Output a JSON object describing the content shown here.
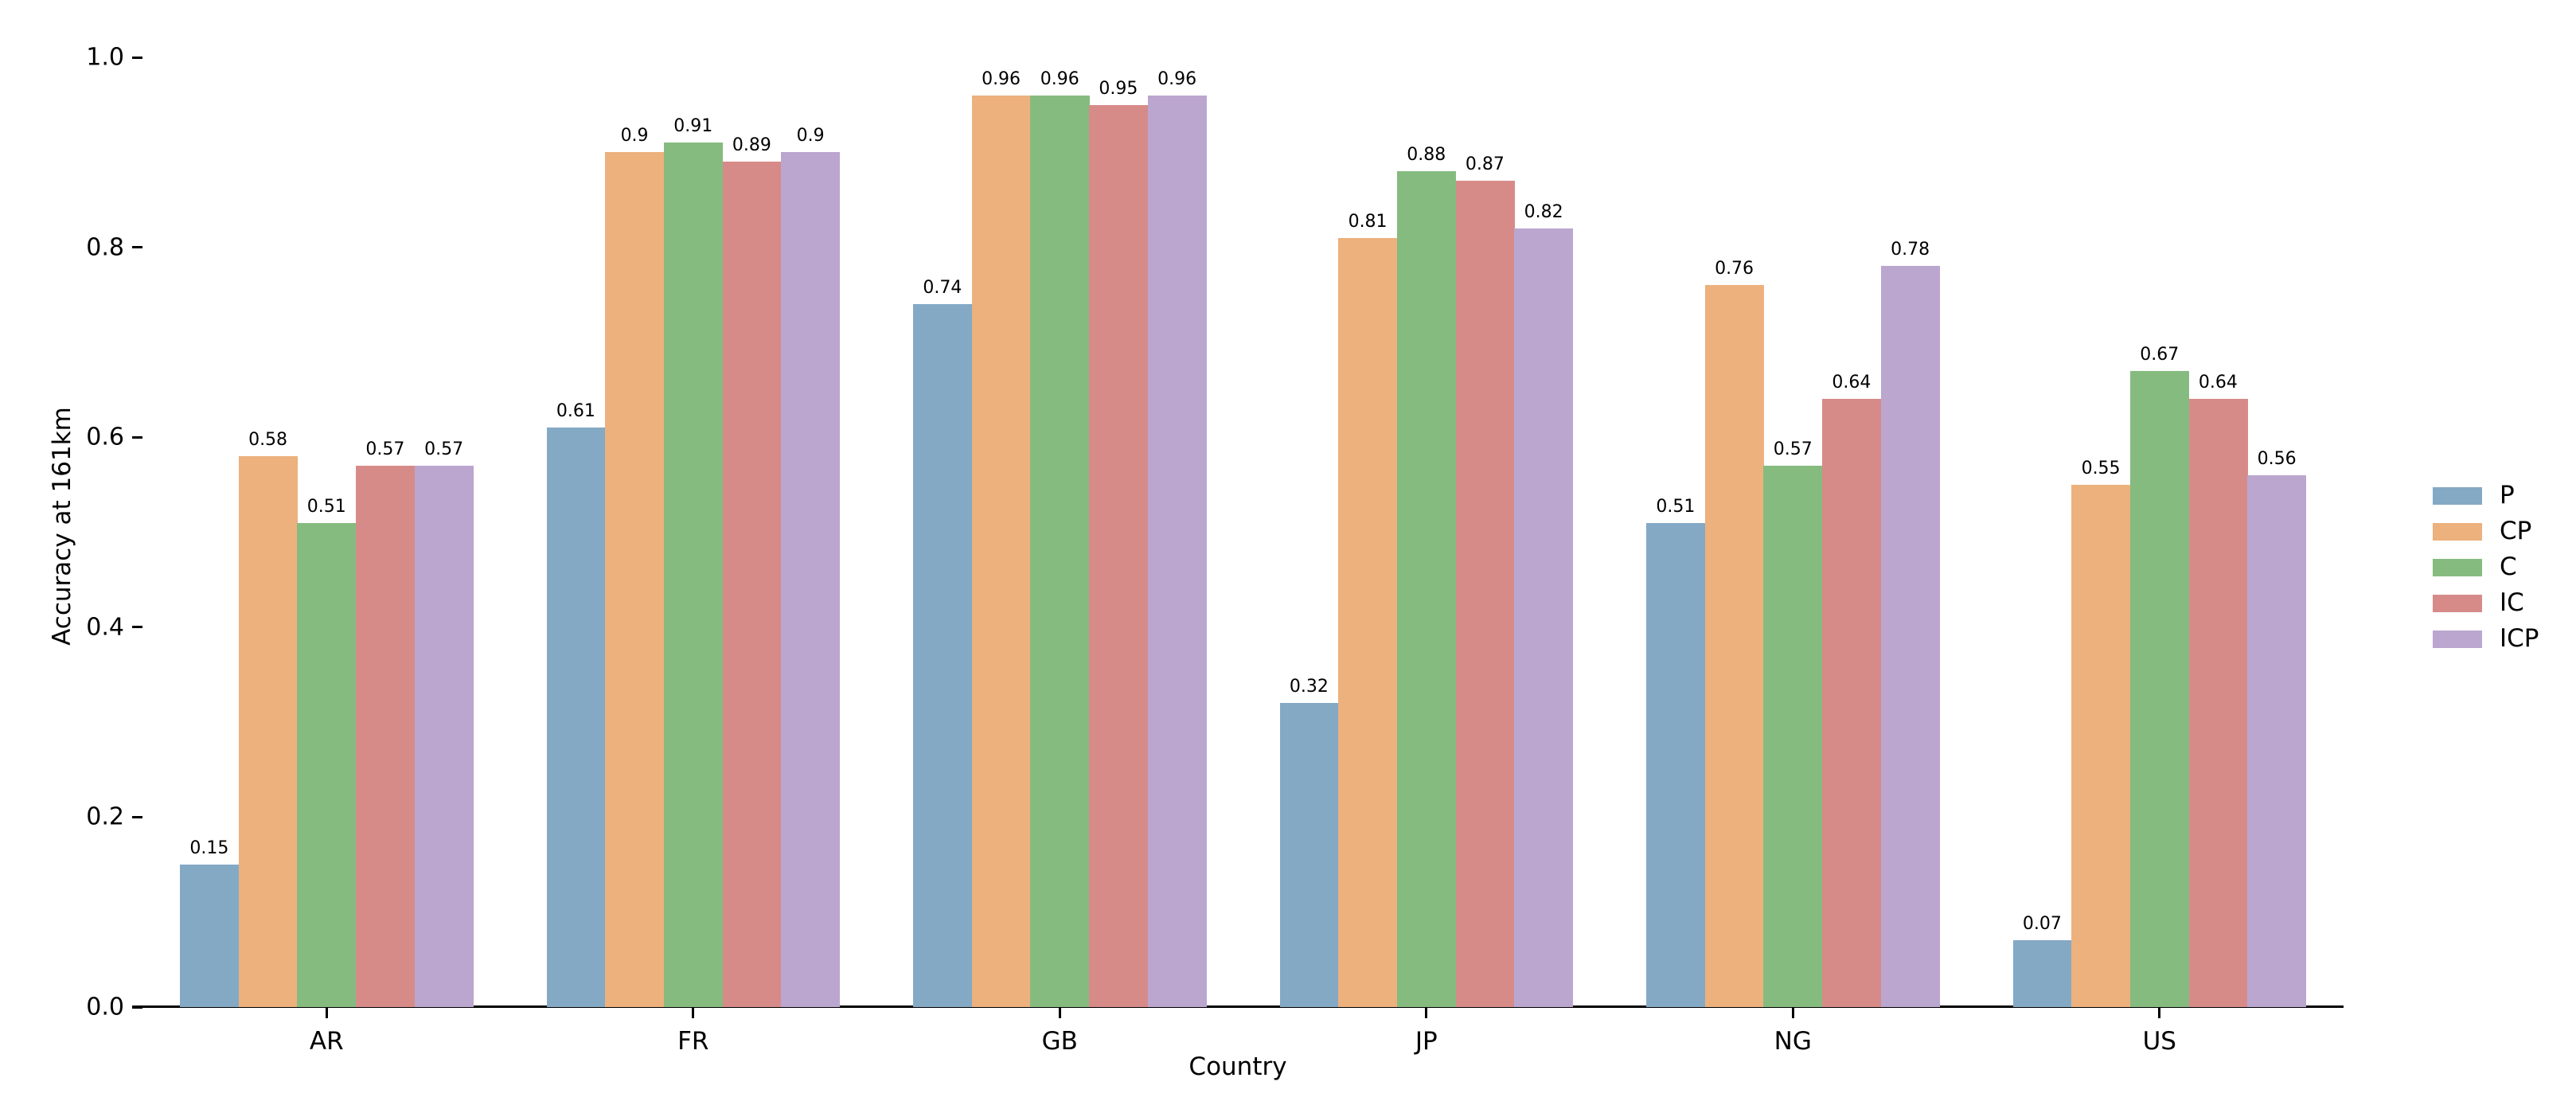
{
  "chart_data": {
    "type": "bar",
    "title": "",
    "xlabel": "Country",
    "ylabel": "Accuracy at 161km",
    "categories": [
      "AR",
      "FR",
      "GB",
      "JP",
      "NG",
      "US"
    ],
    "series": [
      {
        "name": "P",
        "color": "#84A9C5",
        "values": [
          0.15,
          0.61,
          0.74,
          0.32,
          0.51,
          0.07
        ]
      },
      {
        "name": "CP",
        "color": "#ECB17D",
        "values": [
          0.58,
          0.9,
          0.96,
          0.81,
          0.76,
          0.55
        ]
      },
      {
        "name": "C",
        "color": "#86BB80",
        "values": [
          0.51,
          0.91,
          0.96,
          0.88,
          0.57,
          0.67
        ]
      },
      {
        "name": "IC",
        "color": "#D78B89",
        "values": [
          0.57,
          0.89,
          0.95,
          0.87,
          0.64,
          0.64
        ]
      },
      {
        "name": "ICP",
        "color": "#BBA6CF",
        "values": [
          0.57,
          0.9,
          0.96,
          0.82,
          0.78,
          0.56
        ]
      }
    ],
    "ylim": [
      0.0,
      1.0
    ],
    "yticks": [
      0.0,
      0.2,
      0.4,
      0.6,
      0.8,
      1.0
    ],
    "bar_value_labels": true,
    "legend_position": "center right",
    "grid": false,
    "axis_color": "#000000",
    "background_color": "#ffffff"
  }
}
